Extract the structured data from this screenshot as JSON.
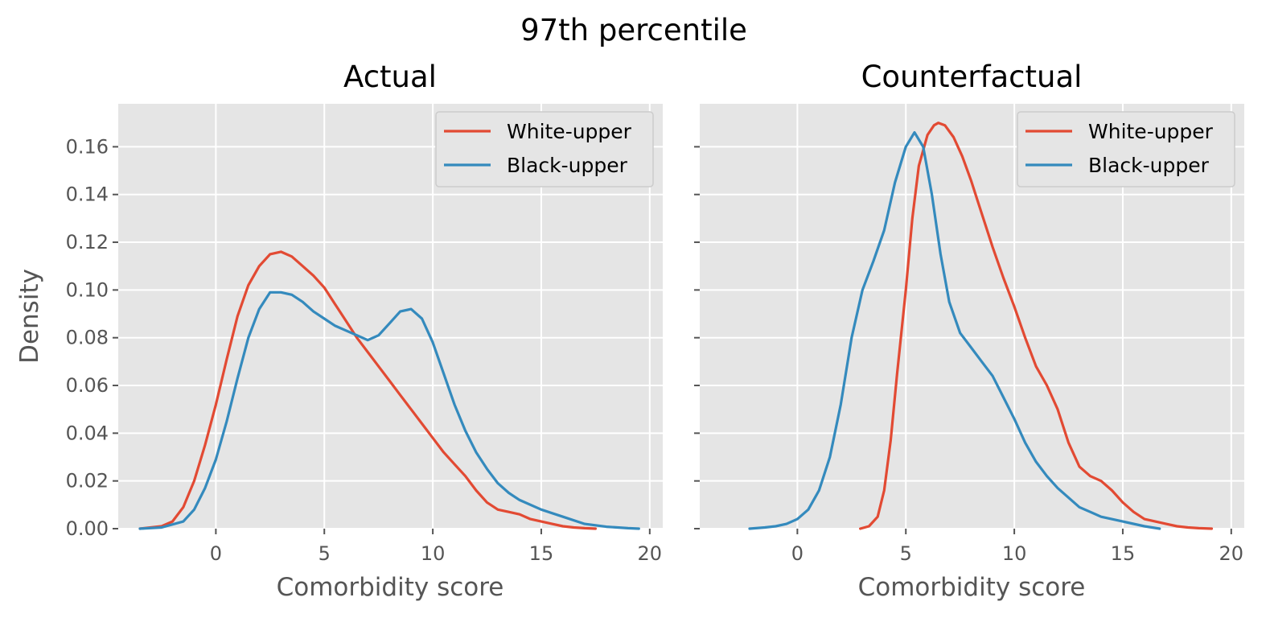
{
  "figure": {
    "suptitle": "97th percentile"
  },
  "chart_data": [
    {
      "type": "line",
      "title": "Actual",
      "xlabel": "Comorbidity score",
      "ylabel": "Density",
      "xlim": [
        -4.5,
        20.6
      ],
      "ylim": [
        0,
        0.178
      ],
      "xticks": [
        0,
        5,
        10,
        15,
        20
      ],
      "yticks": [
        0.0,
        0.02,
        0.04,
        0.06,
        0.08,
        0.1,
        0.12,
        0.14,
        0.16
      ],
      "grid": true,
      "legend": "top-right",
      "series": [
        {
          "name": "White-upper",
          "color": "#E24A33",
          "x": [
            -3.5,
            -2.5,
            -2,
            -1.5,
            -1,
            -0.5,
            0,
            0.5,
            1,
            1.5,
            2,
            2.5,
            3,
            3.5,
            4,
            4.5,
            5,
            5.5,
            6,
            6.5,
            7,
            7.5,
            8,
            8.5,
            9,
            9.5,
            10,
            10.5,
            11,
            11.5,
            12,
            12.5,
            13,
            13.5,
            14,
            14.5,
            15,
            15.5,
            16,
            16.5,
            17,
            17.5
          ],
          "y": [
            0.0,
            0.001,
            0.003,
            0.009,
            0.02,
            0.035,
            0.052,
            0.071,
            0.089,
            0.102,
            0.11,
            0.115,
            0.116,
            0.114,
            0.11,
            0.106,
            0.101,
            0.094,
            0.087,
            0.08,
            0.074,
            0.068,
            0.062,
            0.056,
            0.05,
            0.044,
            0.038,
            0.032,
            0.027,
            0.022,
            0.016,
            0.011,
            0.008,
            0.007,
            0.006,
            0.004,
            0.003,
            0.002,
            0.001,
            0.0005,
            0.0002,
            0.0
          ]
        },
        {
          "name": "Black-upper",
          "color": "#348ABD",
          "x": [
            -3.5,
            -2.5,
            -1.5,
            -1,
            -0.5,
            0,
            0.5,
            1,
            1.5,
            2,
            2.5,
            3,
            3.5,
            4,
            4.5,
            5,
            5.5,
            6,
            6.5,
            7,
            7.5,
            8,
            8.5,
            9,
            9.5,
            10,
            10.5,
            11,
            11.5,
            12,
            12.5,
            13,
            13.5,
            14,
            15,
            16,
            17,
            18,
            19,
            19.5
          ],
          "y": [
            0.0,
            0.0005,
            0.003,
            0.008,
            0.017,
            0.029,
            0.045,
            0.063,
            0.08,
            0.092,
            0.099,
            0.099,
            0.098,
            0.095,
            0.091,
            0.088,
            0.085,
            0.083,
            0.081,
            0.079,
            0.081,
            0.086,
            0.091,
            0.092,
            0.088,
            0.078,
            0.065,
            0.052,
            0.041,
            0.032,
            0.025,
            0.019,
            0.015,
            0.012,
            0.008,
            0.005,
            0.002,
            0.0008,
            0.0002,
            0.0
          ]
        }
      ]
    },
    {
      "type": "line",
      "title": "Counterfactual",
      "xlabel": "Comorbidity score",
      "ylabel": "",
      "xlim": [
        -4.5,
        20.6
      ],
      "ylim": [
        0,
        0.178
      ],
      "xticks": [
        0,
        5,
        10,
        15,
        20
      ],
      "yticks": [
        0.0,
        0.02,
        0.04,
        0.06,
        0.08,
        0.1,
        0.12,
        0.14,
        0.16
      ],
      "grid": true,
      "legend": "top-right",
      "series": [
        {
          "name": "White-upper",
          "color": "#E24A33",
          "x": [
            2.9,
            3.3,
            3.7,
            4,
            4.3,
            4.6,
            5,
            5.3,
            5.6,
            6,
            6.3,
            6.5,
            6.8,
            7.2,
            7.6,
            8,
            8.5,
            9,
            9.5,
            10,
            10.5,
            11,
            11.5,
            12,
            12.5,
            13,
            13.5,
            14,
            14.5,
            15,
            15.5,
            16,
            16.5,
            17,
            17.5,
            18,
            18.5,
            19.1
          ],
          "y": [
            0.0,
            0.001,
            0.005,
            0.016,
            0.037,
            0.065,
            0.1,
            0.13,
            0.152,
            0.165,
            0.169,
            0.17,
            0.169,
            0.164,
            0.156,
            0.146,
            0.132,
            0.118,
            0.105,
            0.093,
            0.08,
            0.068,
            0.06,
            0.05,
            0.036,
            0.026,
            0.022,
            0.02,
            0.016,
            0.011,
            0.007,
            0.004,
            0.003,
            0.002,
            0.001,
            0.0005,
            0.0002,
            0.0
          ]
        },
        {
          "name": "Black-upper",
          "color": "#348ABD",
          "x": [
            -2.2,
            -1.5,
            -1,
            -0.5,
            0,
            0.5,
            1,
            1.5,
            2,
            2.5,
            3,
            3.5,
            4,
            4.5,
            5,
            5.4,
            5.8,
            6.2,
            6.6,
            7,
            7.5,
            8,
            8.5,
            9,
            9.5,
            10,
            10.5,
            11,
            11.5,
            12,
            12.5,
            13,
            13.5,
            14,
            15,
            16,
            16.7
          ],
          "y": [
            0.0,
            0.0005,
            0.001,
            0.002,
            0.004,
            0.008,
            0.016,
            0.03,
            0.052,
            0.08,
            0.1,
            0.112,
            0.125,
            0.145,
            0.16,
            0.166,
            0.16,
            0.14,
            0.115,
            0.095,
            0.082,
            0.076,
            0.07,
            0.064,
            0.055,
            0.046,
            0.036,
            0.028,
            0.022,
            0.017,
            0.013,
            0.009,
            0.007,
            0.005,
            0.003,
            0.001,
            0.0
          ]
        }
      ]
    }
  ]
}
